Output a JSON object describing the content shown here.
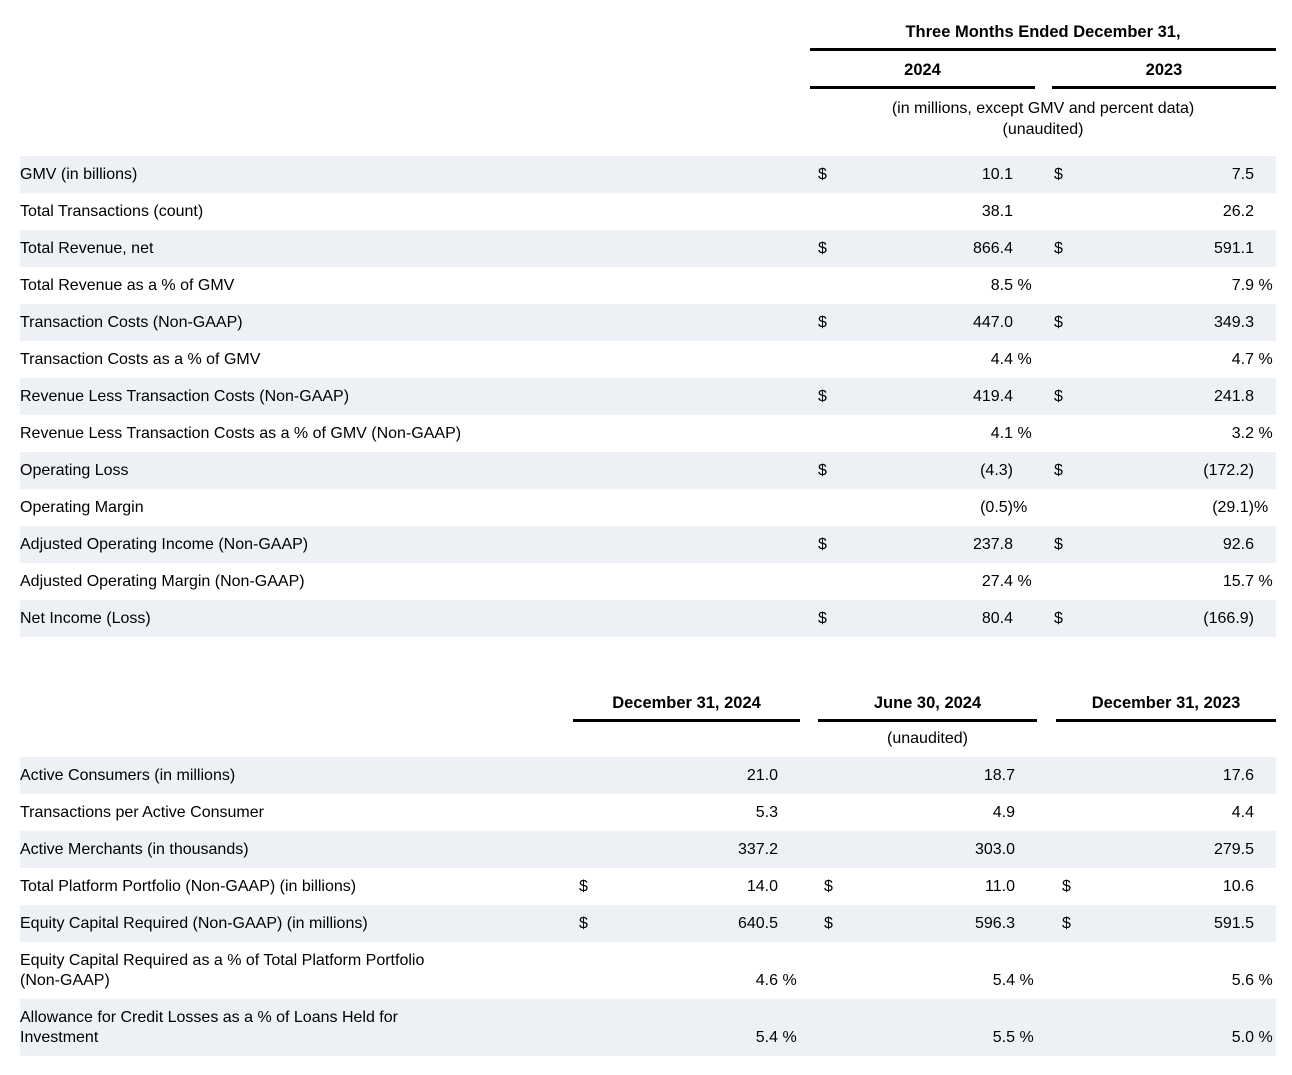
{
  "colors": {
    "row_shade": "#edf1f6",
    "text": "#000000",
    "rule": "#000000"
  },
  "table1": {
    "period_header": "Three Months Ended December 31,",
    "col_headers": [
      "2024",
      "2023"
    ],
    "note_line1": "(in millions, except GMV and percent data)",
    "note_line2": "(unaudited)",
    "rows": [
      {
        "label": "GMV (in billions)",
        "shaded": true,
        "cells": [
          {
            "cur": "$",
            "val": "10.1",
            "suf": ""
          },
          {
            "cur": "$",
            "val": "7.5",
            "suf": ""
          }
        ]
      },
      {
        "label": "Total Transactions (count)",
        "shaded": false,
        "cells": [
          {
            "cur": "",
            "val": "38.1",
            "suf": ""
          },
          {
            "cur": "",
            "val": "26.2",
            "suf": ""
          }
        ]
      },
      {
        "label": "Total Revenue, net",
        "shaded": true,
        "cells": [
          {
            "cur": "$",
            "val": "866.4",
            "suf": ""
          },
          {
            "cur": "$",
            "val": "591.1",
            "suf": ""
          }
        ]
      },
      {
        "label": "Total Revenue as a % of GMV",
        "shaded": false,
        "cells": [
          {
            "cur": "",
            "val": "8.5",
            "suf": " %"
          },
          {
            "cur": "",
            "val": "7.9",
            "suf": " %"
          }
        ]
      },
      {
        "label": "Transaction Costs (Non-GAAP)",
        "shaded": true,
        "cells": [
          {
            "cur": "$",
            "val": "447.0",
            "suf": ""
          },
          {
            "cur": "$",
            "val": "349.3",
            "suf": ""
          }
        ]
      },
      {
        "label": "Transaction Costs as a % of GMV",
        "shaded": false,
        "cells": [
          {
            "cur": "",
            "val": "4.4",
            "suf": " %"
          },
          {
            "cur": "",
            "val": "4.7",
            "suf": " %"
          }
        ]
      },
      {
        "label": "Revenue Less Transaction Costs (Non-GAAP)",
        "shaded": true,
        "cells": [
          {
            "cur": "$",
            "val": "419.4",
            "suf": ""
          },
          {
            "cur": "$",
            "val": "241.8",
            "suf": ""
          }
        ]
      },
      {
        "label": "Revenue Less Transaction Costs as a % of GMV (Non-GAAP)",
        "shaded": false,
        "cells": [
          {
            "cur": "",
            "val": "4.1",
            "suf": " %"
          },
          {
            "cur": "",
            "val": "3.2",
            "suf": " %"
          }
        ]
      },
      {
        "label": "Operating Loss",
        "shaded": true,
        "cells": [
          {
            "cur": "$",
            "val": "(4.3)",
            "suf": ""
          },
          {
            "cur": "$",
            "val": "(172.2)",
            "suf": ""
          }
        ]
      },
      {
        "label": "Operating Margin",
        "shaded": false,
        "cells": [
          {
            "cur": "",
            "val": "(0.5)",
            "suf": "%"
          },
          {
            "cur": "",
            "val": "(29.1)",
            "suf": "%"
          }
        ]
      },
      {
        "label": "Adjusted Operating Income (Non-GAAP)",
        "shaded": true,
        "cells": [
          {
            "cur": "$",
            "val": "237.8",
            "suf": ""
          },
          {
            "cur": "$",
            "val": "92.6",
            "suf": ""
          }
        ]
      },
      {
        "label": "Adjusted Operating Margin (Non-GAAP)",
        "shaded": false,
        "cells": [
          {
            "cur": "",
            "val": "27.4",
            "suf": " %"
          },
          {
            "cur": "",
            "val": "15.7",
            "suf": " %"
          }
        ]
      },
      {
        "label": "Net Income (Loss)",
        "shaded": true,
        "cells": [
          {
            "cur": "$",
            "val": "80.4",
            "suf": ""
          },
          {
            "cur": "$",
            "val": "(166.9)",
            "suf": ""
          }
        ]
      }
    ]
  },
  "table2": {
    "col_headers": [
      "December 31, 2024",
      "June 30, 2024",
      "December 31, 2023"
    ],
    "note": "(unaudited)",
    "rows": [
      {
        "label": "Active Consumers (in millions)",
        "shaded": true,
        "cells": [
          {
            "cur": "",
            "val": "21.0",
            "suf": ""
          },
          {
            "cur": "",
            "val": "18.7",
            "suf": ""
          },
          {
            "cur": "",
            "val": "17.6",
            "suf": ""
          }
        ]
      },
      {
        "label": "Transactions per Active Consumer",
        "shaded": false,
        "cells": [
          {
            "cur": "",
            "val": "5.3",
            "suf": ""
          },
          {
            "cur": "",
            "val": "4.9",
            "suf": ""
          },
          {
            "cur": "",
            "val": "4.4",
            "suf": ""
          }
        ]
      },
      {
        "label": "Active Merchants (in thousands)",
        "shaded": true,
        "cells": [
          {
            "cur": "",
            "val": "337.2",
            "suf": ""
          },
          {
            "cur": "",
            "val": "303.0",
            "suf": ""
          },
          {
            "cur": "",
            "val": "279.5",
            "suf": ""
          }
        ]
      },
      {
        "label": "Total Platform Portfolio (Non-GAAP) (in billions)",
        "shaded": false,
        "cells": [
          {
            "cur": "$",
            "val": "14.0",
            "suf": ""
          },
          {
            "cur": "$",
            "val": "11.0",
            "suf": ""
          },
          {
            "cur": "$",
            "val": "10.6",
            "suf": ""
          }
        ]
      },
      {
        "label": "Equity Capital Required (Non-GAAP) (in millions)",
        "shaded": true,
        "cells": [
          {
            "cur": "$",
            "val": "640.5",
            "suf": ""
          },
          {
            "cur": "$",
            "val": "596.3",
            "suf": ""
          },
          {
            "cur": "$",
            "val": "591.5",
            "suf": ""
          }
        ]
      },
      {
        "label": "Equity Capital Required as a % of Total Platform Portfolio\n(Non-GAAP)",
        "shaded": false,
        "cells": [
          {
            "cur": "",
            "val": "4.6",
            "suf": " %"
          },
          {
            "cur": "",
            "val": "5.4",
            "suf": " %"
          },
          {
            "cur": "",
            "val": "5.6",
            "suf": " %"
          }
        ]
      },
      {
        "label": "Allowance for Credit Losses as a % of Loans Held for\nInvestment",
        "shaded": true,
        "cells": [
          {
            "cur": "",
            "val": "5.4",
            "suf": " %"
          },
          {
            "cur": "",
            "val": "5.5",
            "suf": " %"
          },
          {
            "cur": "",
            "val": "5.0",
            "suf": " %"
          }
        ]
      }
    ]
  }
}
